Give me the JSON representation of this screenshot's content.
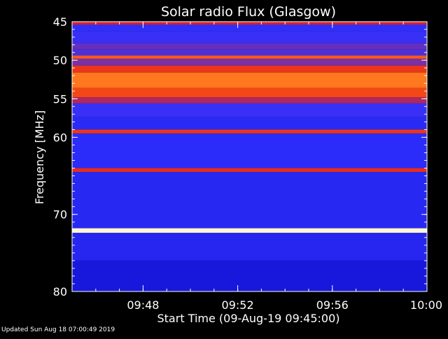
{
  "footer": {
    "updated": "Updated Sun Aug 18 07:00:49 2019"
  },
  "chart_data": {
    "type": "heatmap",
    "title": "Solar radio Flux (Glasgow)",
    "xlabel": "Start Time (09-Aug-19 09:45:00)",
    "ylabel": "Frequency [MHz]",
    "xlim": [
      "09:45",
      "10:00"
    ],
    "ylim": [
      45,
      80
    ],
    "y_axis_direction": "down",
    "x_ticks": [
      "09:48",
      "09:52",
      "09:56",
      "10:00"
    ],
    "y_ticks": [
      45,
      50,
      55,
      60,
      70,
      80
    ],
    "y_tick_labels": [
      "45",
      "50",
      "55",
      "60",
      "70",
      "80"
    ],
    "colormap": [
      "#000060",
      "#1010d0",
      "#3030ff",
      "#8030a0",
      "#e02020",
      "#ff6010",
      "#ffe060",
      "#ffffff"
    ],
    "bands": [
      {
        "mhz_from": 45.0,
        "mhz_to": 45.4,
        "level": 0.55
      },
      {
        "mhz_from": 45.4,
        "mhz_to": 46.2,
        "level": 0.28
      },
      {
        "mhz_from": 46.2,
        "mhz_to": 47.8,
        "level": 0.3
      },
      {
        "mhz_from": 47.8,
        "mhz_to": 48.6,
        "level": 0.38
      },
      {
        "mhz_from": 48.6,
        "mhz_to": 49.4,
        "level": 0.34
      },
      {
        "mhz_from": 49.4,
        "mhz_to": 49.8,
        "level": 0.7
      },
      {
        "mhz_from": 49.8,
        "mhz_to": 50.7,
        "level": 0.42
      },
      {
        "mhz_from": 50.7,
        "mhz_to": 51.6,
        "level": 0.62
      },
      {
        "mhz_from": 51.6,
        "mhz_to": 53.6,
        "level": 0.74
      },
      {
        "mhz_from": 53.6,
        "mhz_to": 54.8,
        "level": 0.66
      },
      {
        "mhz_from": 54.8,
        "mhz_to": 55.6,
        "level": 0.5
      },
      {
        "mhz_from": 55.6,
        "mhz_to": 57.4,
        "level": 0.3
      },
      {
        "mhz_from": 57.4,
        "mhz_to": 59.0,
        "level": 0.26
      },
      {
        "mhz_from": 59.0,
        "mhz_to": 59.5,
        "level": 0.62
      },
      {
        "mhz_from": 59.5,
        "mhz_to": 64.0,
        "level": 0.27
      },
      {
        "mhz_from": 64.0,
        "mhz_to": 64.5,
        "level": 0.6
      },
      {
        "mhz_from": 64.5,
        "mhz_to": 71.8,
        "level": 0.25
      },
      {
        "mhz_from": 71.8,
        "mhz_to": 72.4,
        "level": 0.96
      },
      {
        "mhz_from": 72.4,
        "mhz_to": 76.0,
        "level": 0.24
      },
      {
        "mhz_from": 76.0,
        "mhz_to": 80.0,
        "level": 0.18
      }
    ]
  }
}
